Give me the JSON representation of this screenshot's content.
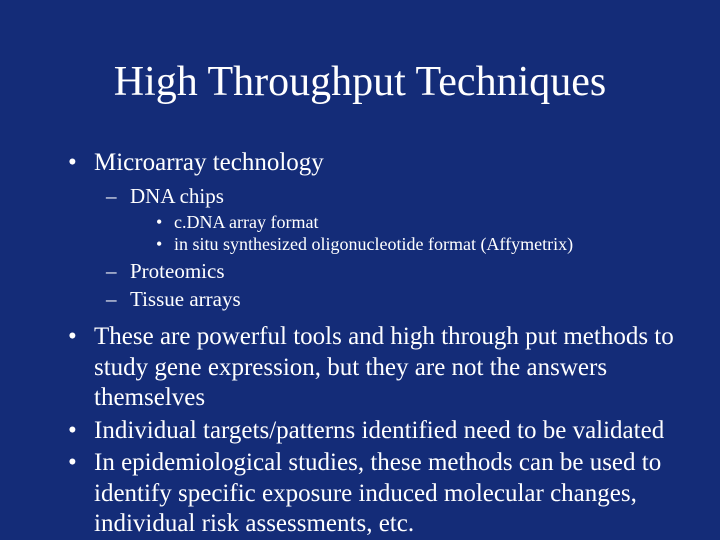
{
  "background_color": "#142c78",
  "text_color": "#ffffff",
  "font_family": "Times New Roman",
  "title": {
    "text": "High Throughput Techniques",
    "fontsize": 42
  },
  "bullets": {
    "lvl1_fontsize": 25,
    "lvl2_fontsize": 21,
    "lvl3_fontsize": 18,
    "item1": "Microarray technology",
    "item1_sub1": "DNA chips",
    "item1_sub1_a": "c.DNA array format",
    "item1_sub1_b": "in situ synthesized oligonucleotide format (Affymetrix)",
    "item1_sub2": "Proteomics",
    "item1_sub3": "Tissue arrays",
    "item2": "These are powerful tools and high through put methods to study gene expression, but they are not the answers themselves",
    "item3": "Individual targets/patterns identified need to be validated",
    "item4": "In epidemiological studies, these methods can be used to identify specific exposure induced molecular changes, individual risk assessments,  etc."
  }
}
